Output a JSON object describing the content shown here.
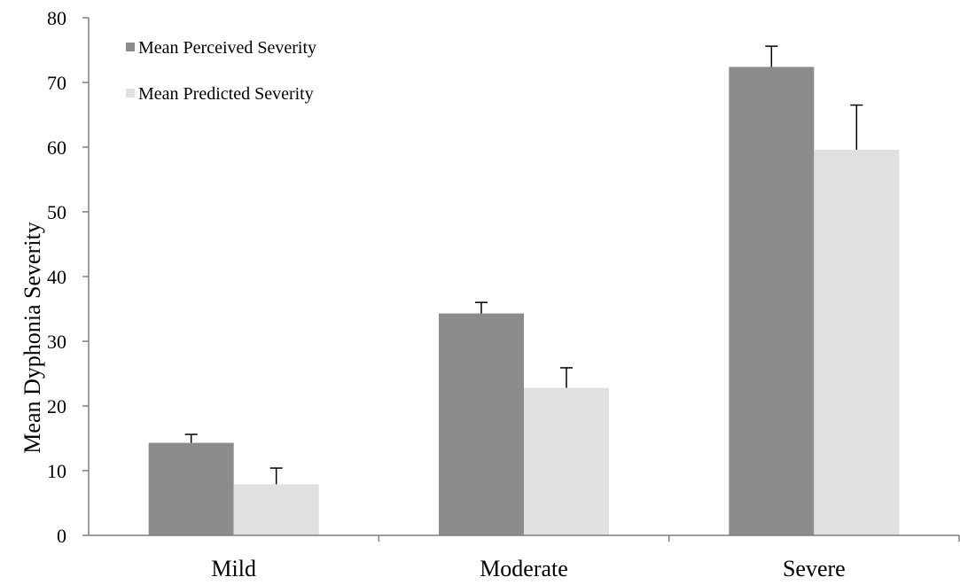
{
  "chart_data": {
    "type": "bar",
    "categories": [
      "Mild",
      "Moderate",
      "Severe"
    ],
    "series": [
      {
        "name": "Mean Perceived Severity",
        "values": [
          14.3,
          34.3,
          72.4
        ],
        "errors": [
          1.3,
          1.7,
          3.2
        ],
        "color": "#8c8c8c"
      },
      {
        "name": "Mean Predicted Severity",
        "values": [
          7.9,
          22.8,
          59.6
        ],
        "errors": [
          2.5,
          3.1,
          6.9
        ],
        "color": "#e0e0e0"
      }
    ],
    "ylabel": "Mean Dyphonia Severity",
    "xlabel": "",
    "ylim": [
      0,
      80
    ],
    "yticks": [
      0,
      10,
      20,
      30,
      40,
      50,
      60,
      70,
      80
    ],
    "grid": false,
    "legend_position": "top-left"
  }
}
